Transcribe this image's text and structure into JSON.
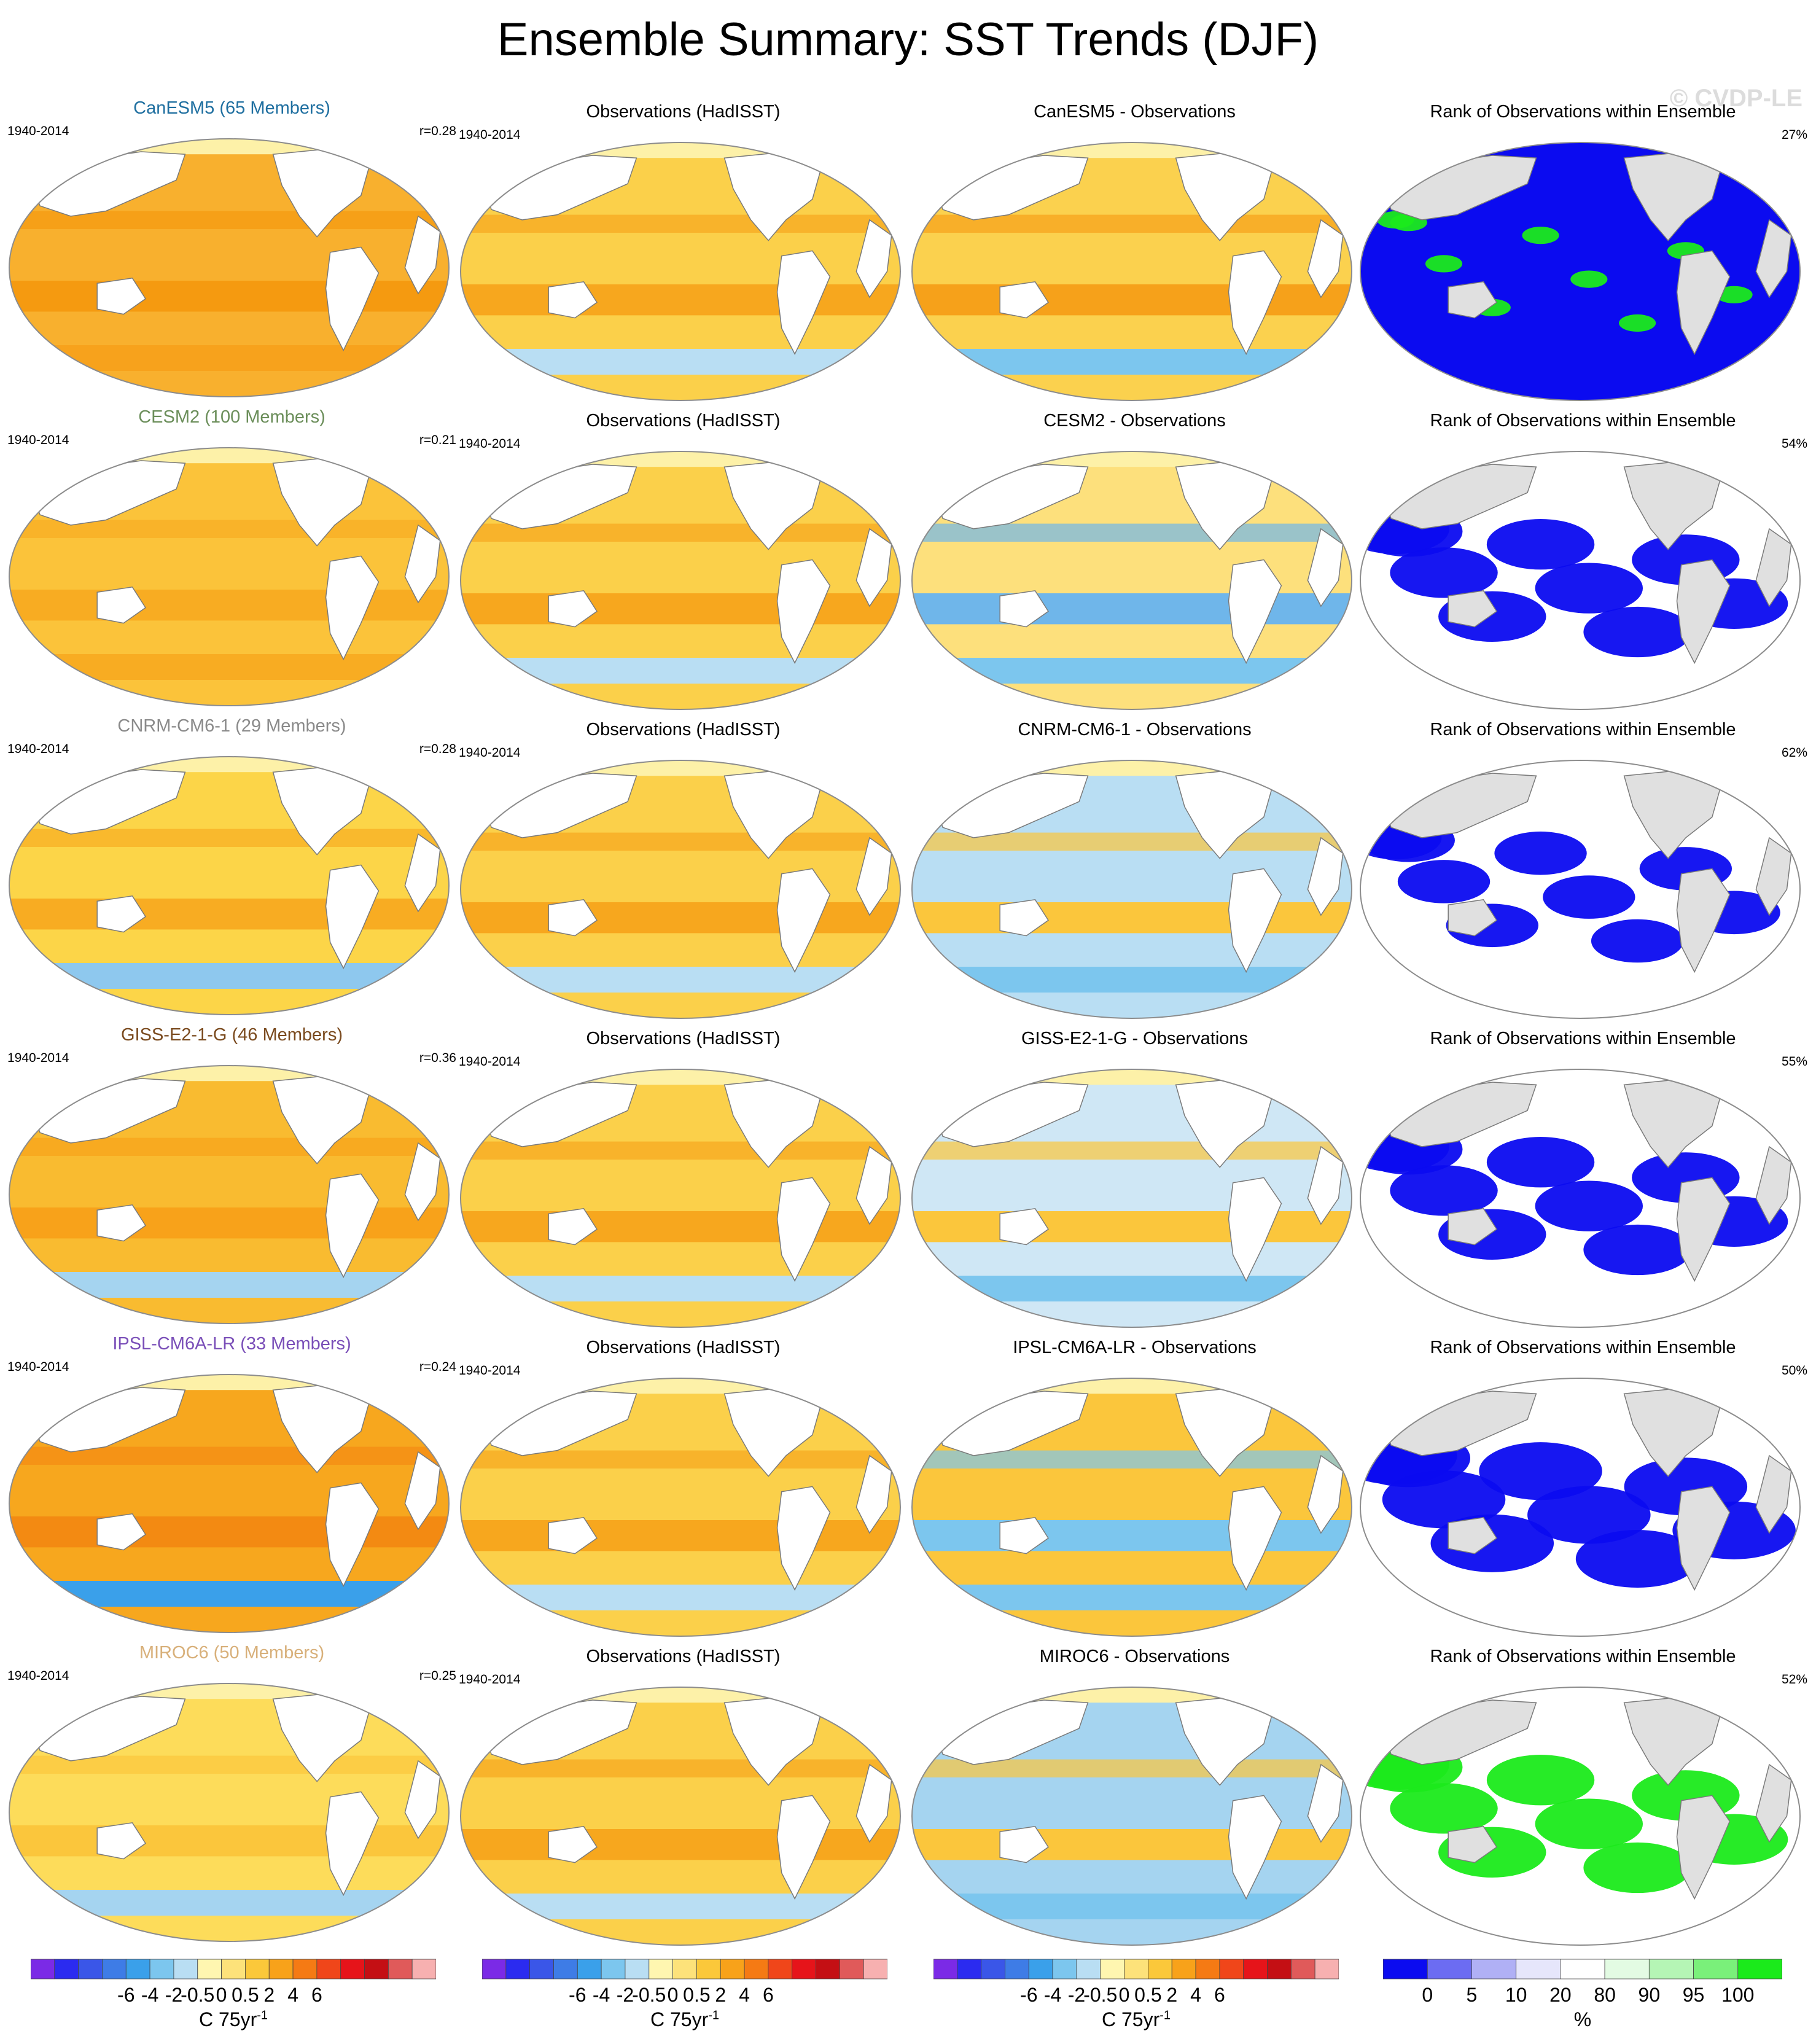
{
  "title": "Ensemble Summary: SST Trends (DJF)",
  "watermark": "© CVDP-LE",
  "period": "1940-2014",
  "rank_title": "Rank of Observations within Ensemble",
  "obs_title": "Observations (HadISST)",
  "colors": {
    "land": "#ffffff",
    "rank_land": "#e0e0e0",
    "map_outline": "#8c8c8c",
    "trend_scale": [
      "#7b2ae6",
      "#2b2bf0",
      "#3a56e8",
      "#3e7ce6",
      "#3aa0ea",
      "#7cc6ee",
      "#b9def3",
      "#fff6b0",
      "#fde27a",
      "#fbc83a",
      "#f8a21a",
      "#f57a14",
      "#f0461a",
      "#e6141a",
      "#c40f14",
      "#e05a5a",
      "#f7b0b0"
    ],
    "rank_scale": [
      "#0b0bf0",
      "#6c6cf2",
      "#b0b0f5",
      "#e6e6fb",
      "#ffffff",
      "#e3fbe3",
      "#b5f5b5",
      "#7af07a",
      "#1bea1b"
    ]
  },
  "rows": [
    {
      "model": "CanESM5",
      "title": "CanESM5 (65 Members)",
      "title_color": "#1f6fa0",
      "r": "r=0.28",
      "diff_title": "CanESM5 - Observations",
      "rank_pct": "27%",
      "model_fill": "#f8b02e",
      "model_band": "#f59a10",
      "south_band": "#f7a21c",
      "obs_fill": "#fbd04a",
      "obs_band": "#f7a71e",
      "diff_fill": "#fbd14e",
      "diff_band": "#f6a11a",
      "rank_fill": "#0b0bf0",
      "rank_patch": "#1bea1b",
      "rank_patch_size": 0.12
    },
    {
      "model": "CESM2",
      "title": "CESM2 (100 Members)",
      "title_color": "#6b8e5a",
      "r": "r=0.21",
      "diff_title": "CESM2 - Observations",
      "rank_pct": "54%",
      "model_fill": "#fbc33a",
      "model_band": "#f8ac22",
      "south_band": "#f8ac22",
      "obs_fill": "#fbd04a",
      "obs_band": "#f7a71e",
      "diff_fill": "#fde07c",
      "diff_band": "#6fb6ea",
      "rank_fill": "#ffffff",
      "rank_patch": "#0b0bf0",
      "rank_patch_size": 0.35
    },
    {
      "model": "CNRM-CM6-1",
      "title": "CNRM-CM6-1 (29 Members)",
      "title_color": "#8a8a8a",
      "r": "r=0.28",
      "diff_title": "CNRM-CM6-1 - Observations",
      "rank_pct": "62%",
      "model_fill": "#fcd548",
      "model_band": "#f8ac22",
      "south_band": "#8ec8ee",
      "obs_fill": "#fbd04a",
      "obs_band": "#f7a71e",
      "diff_fill": "#b9def3",
      "diff_band": "#fbc63c",
      "rank_fill": "#ffffff",
      "rank_patch": "#0b0bf0",
      "rank_patch_size": 0.3
    },
    {
      "model": "GISS-E2-1-G",
      "title": "GISS-E2-1-G (46 Members)",
      "title_color": "#7a4a1e",
      "r": "r=0.36",
      "diff_title": "GISS-E2-1-G - Observations",
      "rank_pct": "55%",
      "model_fill": "#f9bb30",
      "model_band": "#f8a21a",
      "south_band": "#a5d4f0",
      "obs_fill": "#fbd04a",
      "obs_band": "#f7a71e",
      "diff_fill": "#cfe7f5",
      "diff_band": "#fbc63c",
      "rank_fill": "#ffffff",
      "rank_patch": "#0b0bf0",
      "rank_patch_size": 0.35
    },
    {
      "model": "IPSL-CM6A-LR",
      "title": "IPSL-CM6A-LR (33 Members)",
      "title_color": "#7a4fb8",
      "r": "r=0.24",
      "diff_title": "IPSL-CM6A-LR - Observations",
      "rank_pct": "50%",
      "model_fill": "#f7a71e",
      "model_band": "#f38a12",
      "south_band": "#3aa0ea",
      "obs_fill": "#fbd04a",
      "obs_band": "#f7a71e",
      "diff_fill": "#fbc63c",
      "diff_band": "#7cc6ee",
      "rank_fill": "#ffffff",
      "rank_patch": "#0b0bf0",
      "rank_patch_size": 0.4
    },
    {
      "model": "MIROC6",
      "title": "MIROC6 (50 Members)",
      "title_color": "#d8b07a",
      "r": "r=0.25",
      "diff_title": "MIROC6 - Observations",
      "rank_pct": "52%",
      "model_fill": "#fddc5a",
      "model_band": "#fbc63c",
      "south_band": "#a5d4f0",
      "obs_fill": "#fbd04a",
      "obs_band": "#f7a71e",
      "diff_fill": "#a5d4f0",
      "diff_band": "#fbc63c",
      "rank_fill": "#ffffff",
      "rank_patch": "#1bea1b",
      "rank_patch_size": 0.35
    }
  ],
  "colorbars": {
    "trend_ticks": [
      "-6",
      "-4",
      "-2",
      "-0.5",
      "0",
      "0.5",
      "2",
      "4",
      "6"
    ],
    "trend_unit": "C 75yr",
    "trend_unit_sup": "-1",
    "rank_ticks": [
      "0",
      "5",
      "10",
      "20",
      "80",
      "90",
      "95",
      "100"
    ],
    "rank_unit": "%"
  }
}
